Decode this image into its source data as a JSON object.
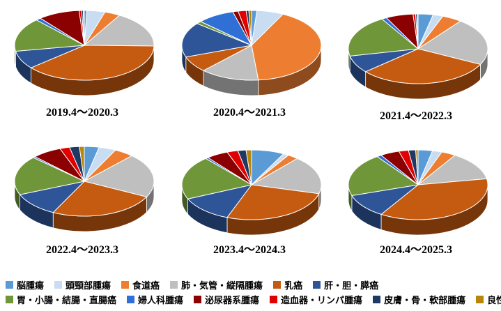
{
  "categories": [
    "脳腫瘍",
    "頭頸部腫瘍",
    "食道癌",
    "肺・気管・縦隔腫瘍",
    "乳癌",
    "肝・胆・膵癌",
    "胃・小腸・結腸・直腸癌",
    "婦人科腫瘍",
    "泌尿器系腫瘍",
    "造血器・リンパ腫瘍",
    "皮膚・骨・軟部腫瘍",
    "良性疾患"
  ],
  "colors": [
    "#5B9BD5",
    "#C9DDF2",
    "#ED7D31",
    "#BFBFBF",
    "#C55A11",
    "#2E5597",
    "#70963A",
    "#2F6FD6",
    "#8B0000",
    "#E00000",
    "#1F3864",
    "#B8860B"
  ],
  "legend_rows": [
    [
      0,
      1,
      2,
      3,
      4,
      5
    ],
    [
      6,
      7,
      8,
      9,
      10,
      11
    ]
  ],
  "chart_data": [
    {
      "type": "pie",
      "title": "2019.4～2020.3",
      "values": [
        0.5,
        3.5,
        3,
        14,
        32,
        7,
        13,
        1,
        8,
        0.5,
        0.3,
        0.2
      ]
    },
    {
      "type": "pie",
      "title": "2020.4～2021.3",
      "values": [
        1,
        5,
        33,
        11,
        6,
        13,
        1,
        7,
        1,
        1.5,
        0.5,
        0.5
      ]
    },
    {
      "type": "pie",
      "title": "2021.4～2022.3",
      "values": [
        3,
        2,
        4,
        19,
        27,
        7,
        17,
        1,
        5.5,
        0.5,
        0.3,
        0.2
      ]
    },
    {
      "type": "pie",
      "title": "2022.4～2023.3",
      "values": [
        3,
        3.5,
        4,
        18,
        22,
        10,
        16,
        0.5,
        6,
        2,
        2,
        1
      ]
    },
    {
      "type": "pie",
      "title": "2023.4～2024.3",
      "values": [
        6,
        1,
        2,
        14,
        21,
        10,
        16,
        0.5,
        4,
        2,
        1.5,
        1
      ]
    },
    {
      "type": "pie",
      "title": "2024.4～2025.3",
      "values": [
        3,
        2,
        3,
        12,
        33,
        10,
        18,
        1,
        4,
        2,
        1.5,
        0.5
      ]
    }
  ]
}
